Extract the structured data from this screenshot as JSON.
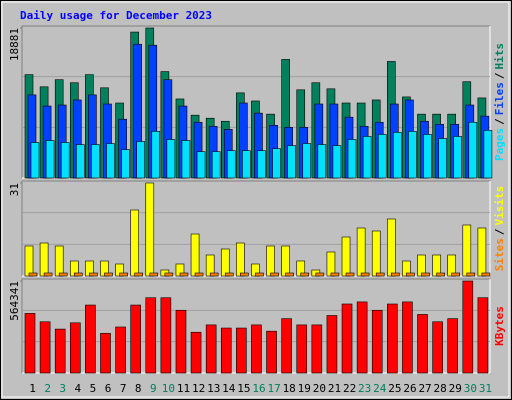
{
  "chart_data": [
    {
      "type": "bar",
      "title": "Daily usage for December 2023",
      "legend_separator": "/",
      "ylim": [
        0,
        18881
      ],
      "yticks": [
        18881
      ],
      "series": [
        {
          "name": "Hits",
          "color": "#00805c",
          "values": [
            13012,
            11481,
            12374,
            11992,
            13012,
            11354,
            9440,
            18370,
            18881,
            13395,
            9950,
            7909,
            7527,
            7144,
            10716,
            9695,
            8037,
            14926,
            11099,
            11992,
            11226,
            9440,
            9440,
            9823,
            14671,
            10206,
            8037,
            8037,
            8037,
            12119,
            10078
          ]
        },
        {
          "name": "Files",
          "color": "#0040ff",
          "values": [
            10461,
            9057,
            9185,
            9823,
            10461,
            9313,
            7399,
            16839,
            16712,
            12374,
            9057,
            7016,
            6506,
            6123,
            9440,
            8164,
            6634,
            6378,
            6378,
            9313,
            9313,
            7654,
            6506,
            7016,
            9313,
            9823,
            7144,
            6761,
            6761,
            9185,
            7782
          ]
        },
        {
          "name": "Pages",
          "color": "#00e0ff",
          "values": [
            4465,
            4720,
            4465,
            4210,
            4210,
            4337,
            3572,
            4593,
            5868,
            4848,
            4720,
            3317,
            3317,
            3444,
            3444,
            3444,
            3700,
            4082,
            4337,
            4210,
            4082,
            4848,
            5230,
            5486,
            5741,
            5868,
            5486,
            4975,
            5230,
            7016,
            5996
          ]
        }
      ]
    },
    {
      "type": "bar",
      "ylim": [
        0,
        31
      ],
      "yticks": [
        31
      ],
      "series": [
        {
          "name": "Visits",
          "color": "#ffff00",
          "values": [
            10,
            11,
            10,
            5,
            5,
            5,
            4,
            22,
            31,
            2,
            4,
            14,
            7,
            9,
            11,
            4,
            10,
            10,
            5,
            2,
            8,
            13,
            16,
            15,
            19,
            5,
            7,
            7,
            7,
            17,
            16
          ]
        },
        {
          "name": "Sites",
          "color": "#ff8000",
          "values": [
            1,
            1,
            1,
            1,
            1,
            1,
            1,
            1,
            1,
            1,
            1,
            1,
            1,
            1,
            1,
            1,
            1,
            1,
            1,
            1,
            1,
            1,
            1,
            1,
            1,
            1,
            1,
            1,
            1,
            1,
            1
          ]
        }
      ]
    },
    {
      "type": "bar",
      "ylim": [
        0,
        564341
      ],
      "yticks": [
        564341
      ],
      "categories": [
        "1",
        "2",
        "3",
        "4",
        "5",
        "6",
        "7",
        "8",
        "9",
        "10",
        "11",
        "12",
        "13",
        "14",
        "15",
        "16",
        "17",
        "18",
        "19",
        "20",
        "21",
        "22",
        "23",
        "24",
        "25",
        "26",
        "27",
        "28",
        "29",
        "30",
        "31"
      ],
      "category_colors": [
        "#000000",
        "#00805c",
        "#00805c",
        "#000000",
        "#000000",
        "#000000",
        "#000000",
        "#000000",
        "#00805c",
        "#00805c",
        "#000000",
        "#000000",
        "#000000",
        "#000000",
        "#000000",
        "#00805c",
        "#00805c",
        "#000000",
        "#000000",
        "#000000",
        "#000000",
        "#000000",
        "#00805c",
        "#00805c",
        "#000000",
        "#000000",
        "#000000",
        "#000000",
        "#000000",
        "#00805c",
        "#00805c"
      ],
      "series": [
        {
          "name": "KBytes",
          "color": "#ff0000",
          "values": [
            365541,
            314237,
            269346,
            307824,
            416845,
            243694,
            282172,
            416845,
            461736,
            461736,
            384780,
            250107,
            294998,
            275759,
            275759,
            294998,
            256520,
            333476,
            294998,
            294998,
            352715,
            423258,
            436084,
            384780,
            423258,
            436084,
            359128,
            314237,
            333476,
            564341,
            461736
          ]
        }
      ]
    }
  ]
}
